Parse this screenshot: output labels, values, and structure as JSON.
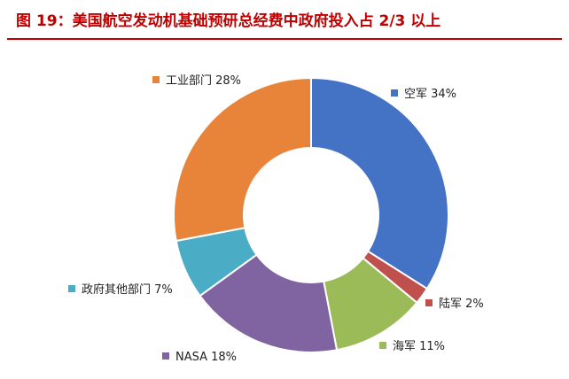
{
  "figure": {
    "title": "图 19：美国航空发动机基础预研总经费中政府投入占 2/3 以上"
  },
  "chart_data": {
    "type": "pie",
    "variant": "donut",
    "legend_placement": "labels-beside-slices",
    "slices": [
      {
        "label": "空军",
        "value": 34,
        "display": "空军 34%",
        "color": "#4472C4"
      },
      {
        "label": "陆军",
        "value": 2,
        "display": "陆军 2%",
        "color": "#C0504D"
      },
      {
        "label": "海军",
        "value": 11,
        "display": "海军 11%",
        "color": "#9BBB59"
      },
      {
        "label": "NASA",
        "value": 18,
        "display": "NASA 18%",
        "color": "#8064A2"
      },
      {
        "label": "政府其他部门",
        "value": 7,
        "display": "政府其他部门 7%",
        "color": "#4BACC6"
      },
      {
        "label": "工业部门",
        "value": 28,
        "display": "工业部门 28%",
        "color": "#E8843A"
      }
    ]
  }
}
